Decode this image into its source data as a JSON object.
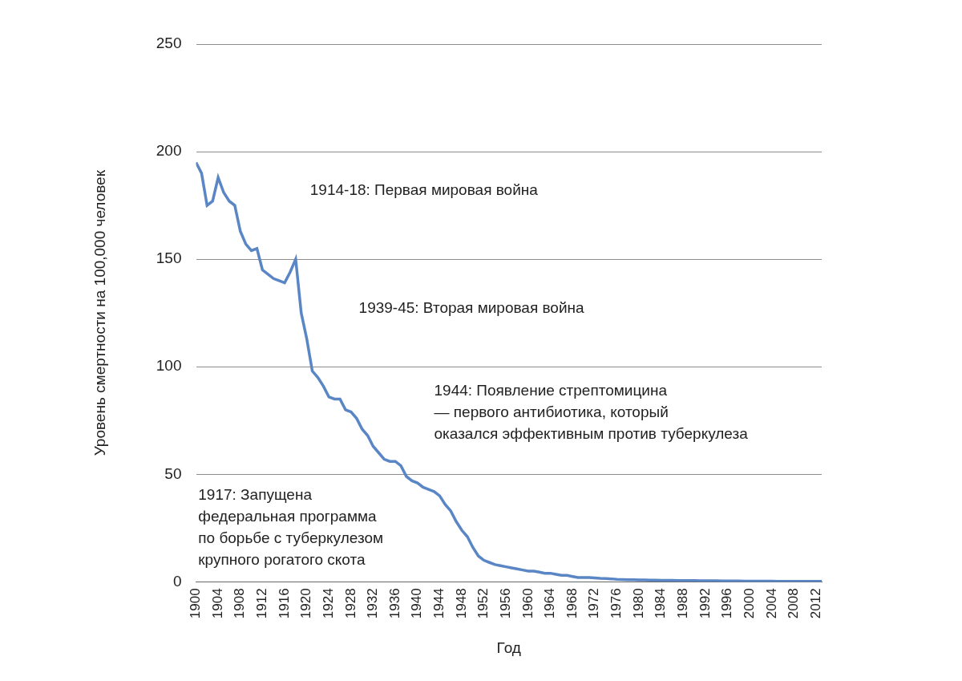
{
  "chart_data": {
    "type": "line",
    "x_label": "Год",
    "y_label": "Уровень смертности на 100,000 человек",
    "annotations": [
      "1914-18: Первая мировая война",
      "1939-45: Вторая мировая война",
      "1944: Появление стрептомицина\n— первого антибиотика, который\nоказался эффективным против туберкулеза",
      "1917: Запущена\nфедеральная программа\nпо борьбе с туберкулезом\nкрупного рогатого скота"
    ],
    "x": [
      1900,
      1901,
      1902,
      1903,
      1904,
      1905,
      1906,
      1907,
      1908,
      1909,
      1910,
      1911,
      1912,
      1913,
      1914,
      1915,
      1916,
      1917,
      1918,
      1919,
      1920,
      1921,
      1922,
      1923,
      1924,
      1925,
      1926,
      1927,
      1928,
      1929,
      1930,
      1931,
      1932,
      1933,
      1934,
      1935,
      1936,
      1937,
      1938,
      1939,
      1940,
      1941,
      1942,
      1943,
      1944,
      1945,
      1946,
      1947,
      1948,
      1949,
      1950,
      1951,
      1952,
      1953,
      1954,
      1955,
      1956,
      1957,
      1958,
      1959,
      1960,
      1961,
      1962,
      1963,
      1964,
      1965,
      1966,
      1967,
      1968,
      1969,
      1970,
      1971,
      1972,
      1973,
      1974,
      1975,
      1976,
      1977,
      1978,
      1979,
      1980,
      1981,
      1982,
      1983,
      1984,
      1985,
      1986,
      1987,
      1988,
      1989,
      1990,
      1991,
      1992,
      1993,
      1994,
      1995,
      1996,
      1997,
      1998,
      1999,
      2000,
      2001,
      2002,
      2003,
      2004,
      2005,
      2006,
      2007,
      2008,
      2009,
      2010,
      2011,
      2012,
      2013
    ],
    "values": [
      195,
      190,
      175,
      177,
      188,
      181,
      177,
      175,
      163,
      157,
      154,
      155,
      145,
      143,
      141,
      140,
      139,
      144,
      150,
      125,
      113,
      98,
      95,
      91,
      86,
      85,
      85,
      80,
      79,
      76,
      71,
      68,
      63,
      60,
      57,
      56,
      56,
      54,
      49,
      47,
      46,
      44,
      43,
      42,
      40,
      36,
      33,
      28,
      24,
      21,
      16,
      12,
      10,
      9,
      8,
      7.5,
      7,
      6.5,
      6,
      5.5,
      5,
      5,
      4.5,
      4,
      4,
      3.5,
      3,
      3,
      2.5,
      2,
      2,
      2,
      1.8,
      1.6,
      1.5,
      1.4,
      1.2,
      1.1,
      1,
      1,
      0.9,
      0.9,
      0.8,
      0.8,
      0.7,
      0.7,
      0.7,
      0.6,
      0.6,
      0.6,
      0.6,
      0.5,
      0.5,
      0.5,
      0.5,
      0.4,
      0.4,
      0.4,
      0.4,
      0.3,
      0.3,
      0.3,
      0.3,
      0.3,
      0.3,
      0.2,
      0.2,
      0.2,
      0.2,
      0.2,
      0.2,
      0.2,
      0.2,
      0.2
    ],
    "color": "#5b86c5",
    "xlim": [
      1900,
      2013
    ],
    "xticks": [
      1900,
      1904,
      1908,
      1912,
      1916,
      1920,
      1924,
      1928,
      1932,
      1936,
      1940,
      1944,
      1948,
      1952,
      1956,
      1960,
      1964,
      1968,
      1972,
      1976,
      1980,
      1984,
      1988,
      1992,
      1996,
      2000,
      2004,
      2008,
      2012
    ],
    "ylim": [
      0,
      250
    ],
    "yticks": [
      0,
      50,
      100,
      150,
      200,
      250
    ],
    "grid": true
  }
}
